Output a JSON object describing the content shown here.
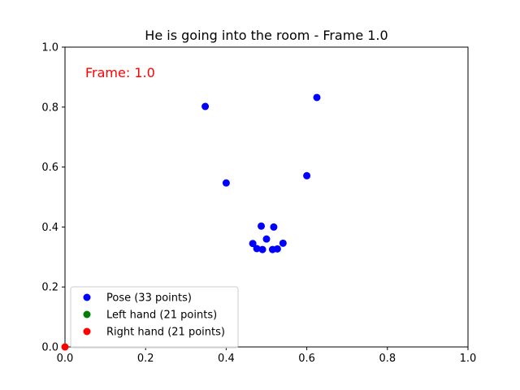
{
  "chart_data": {
    "type": "scatter",
    "title": "He is going into the room - Frame 1.0",
    "annotation": "Frame: 1.0",
    "annotation_color": "#ff0000",
    "xlim": [
      0,
      1
    ],
    "ylim": [
      0,
      1
    ],
    "xticks": [
      "0.0",
      "0.2",
      "0.4",
      "0.6",
      "0.8",
      "1.0"
    ],
    "yticks": [
      "0.0",
      "0.2",
      "0.4",
      "0.6",
      "0.8",
      "1.0"
    ],
    "grid": false,
    "legend_position": "lower-left",
    "series": [
      {
        "name": "Pose (33 points)",
        "color": "#0000ff",
        "points": [
          [
            0.625,
            0.832
          ],
          [
            0.348,
            0.802
          ],
          [
            0.4,
            0.547
          ],
          [
            0.6,
            0.571
          ],
          [
            0.487,
            0.403
          ],
          [
            0.518,
            0.4
          ],
          [
            0.5,
            0.36
          ],
          [
            0.466,
            0.345
          ],
          [
            0.541,
            0.346
          ],
          [
            0.476,
            0.328
          ],
          [
            0.49,
            0.325
          ],
          [
            0.515,
            0.325
          ],
          [
            0.527,
            0.327
          ]
        ]
      },
      {
        "name": "Left hand (21 points)",
        "color": "#008000",
        "points": []
      },
      {
        "name": "Right hand (21 points)",
        "color": "#ff0000",
        "points": [
          [
            0.0,
            0.0
          ]
        ]
      }
    ]
  }
}
